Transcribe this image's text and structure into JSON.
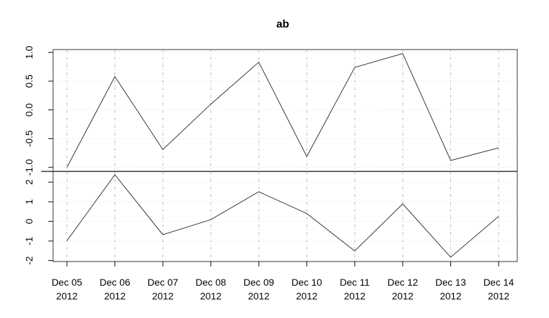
{
  "chart_data": {
    "type": "line",
    "title": "ab",
    "grid": true,
    "categories": [
      [
        "Dec 05",
        "2012"
      ],
      [
        "Dec 06",
        "2012"
      ],
      [
        "Dec 07",
        "2012"
      ],
      [
        "Dec 08",
        "2012"
      ],
      [
        "Dec 09",
        "2012"
      ],
      [
        "Dec 10",
        "2012"
      ],
      [
        "Dec 11",
        "2012"
      ],
      [
        "Dec 12",
        "2012"
      ],
      [
        "Dec 13",
        "2012"
      ],
      [
        "Dec 14",
        "2012"
      ]
    ],
    "panels": [
      {
        "ylim": [
          -1.07,
          1.05
        ],
        "yticks": [
          {
            "value": -1,
            "label": "-1.0"
          },
          -0.5,
          {
            "value": 0,
            "label": "0.0"
          },
          0.5,
          {
            "value": 1,
            "label": "1.0"
          }
        ],
        "series": [
          {
            "color": "#333333",
            "values": [
              -1.0,
              0.58,
              -0.69,
              0.1,
              0.83,
              -0.81,
              0.74,
              0.98,
              -0.88,
              -0.66
            ]
          }
        ]
      },
      {
        "ylim": [
          -2.05,
          2.55
        ],
        "yticks": [
          -2,
          -1,
          0,
          1,
          2
        ],
        "series": [
          {
            "color": "#333333",
            "values": [
              -0.99,
              2.38,
              -0.68,
              0.09,
              1.51,
              0.4,
              -1.51,
              0.89,
              -1.83,
              0.26
            ]
          }
        ]
      }
    ]
  }
}
